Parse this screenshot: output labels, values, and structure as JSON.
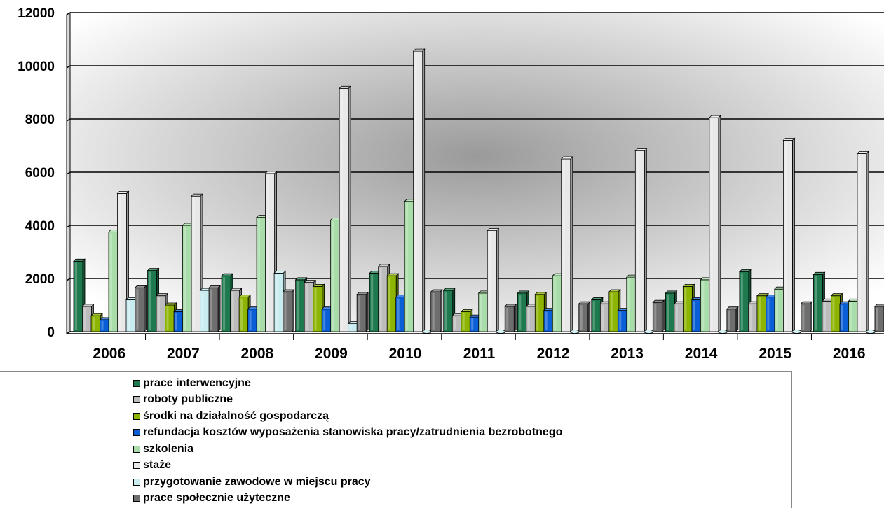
{
  "chart_data": {
    "type": "bar",
    "title": "",
    "xlabel": "",
    "ylabel": "",
    "ylim": [
      0,
      12000
    ],
    "yticks": [
      0,
      2000,
      4000,
      6000,
      8000,
      10000,
      12000
    ],
    "grid": true,
    "legend_position": "bottom",
    "categories": [
      "2006",
      "2007",
      "2008",
      "2009",
      "2010",
      "2011",
      "2012",
      "2013",
      "2014",
      "2015",
      "2016"
    ],
    "series": [
      {
        "name": "prace interwencyjne",
        "color": "#1e7a4e",
        "values": [
          2650,
          2300,
          2100,
          1950,
          2200,
          1550,
          1450,
          1200,
          1450,
          2250,
          2150
        ]
      },
      {
        "name": "roboty publiczne",
        "color": "#bcbcbc",
        "values": [
          950,
          1350,
          1550,
          1850,
          2450,
          600,
          950,
          1050,
          1050,
          1050,
          1150
        ]
      },
      {
        "name": "środki na działalność gospodarczą",
        "color": "#8cb400",
        "values": [
          600,
          1000,
          1300,
          1700,
          2100,
          750,
          1400,
          1500,
          1700,
          1350,
          1350
        ]
      },
      {
        "name": "refundacja kosztów wyposażenia stanowiska pracy/zatrudnienia bezrobotnego",
        "color": "#0a5fd6",
        "values": [
          450,
          750,
          850,
          850,
          1300,
          550,
          800,
          800,
          1200,
          1300,
          1050
        ]
      },
      {
        "name": "szkolenia",
        "color": "#a8dca8",
        "values": [
          3750,
          4000,
          4300,
          4200,
          4900,
          1450,
          2100,
          2050,
          1950,
          1600,
          1150
        ]
      },
      {
        "name": "staże",
        "color": "#e8e8e8",
        "values": [
          5200,
          5100,
          5950,
          9150,
          10550,
          3800,
          6500,
          6800,
          8050,
          7200,
          6700
        ]
      },
      {
        "name": "przygotowanie zawodowe w miejscu pracy",
        "color": "#c8ecf0",
        "values": [
          1200,
          1550,
          2200,
          300,
          0,
          0,
          0,
          0,
          0,
          0,
          0
        ]
      },
      {
        "name": "prace społecznie użyteczne",
        "color": "#6e6e6e",
        "values": [
          1650,
          1650,
          1500,
          1400,
          1500,
          950,
          1050,
          1100,
          850,
          1050,
          950
        ]
      }
    ]
  }
}
